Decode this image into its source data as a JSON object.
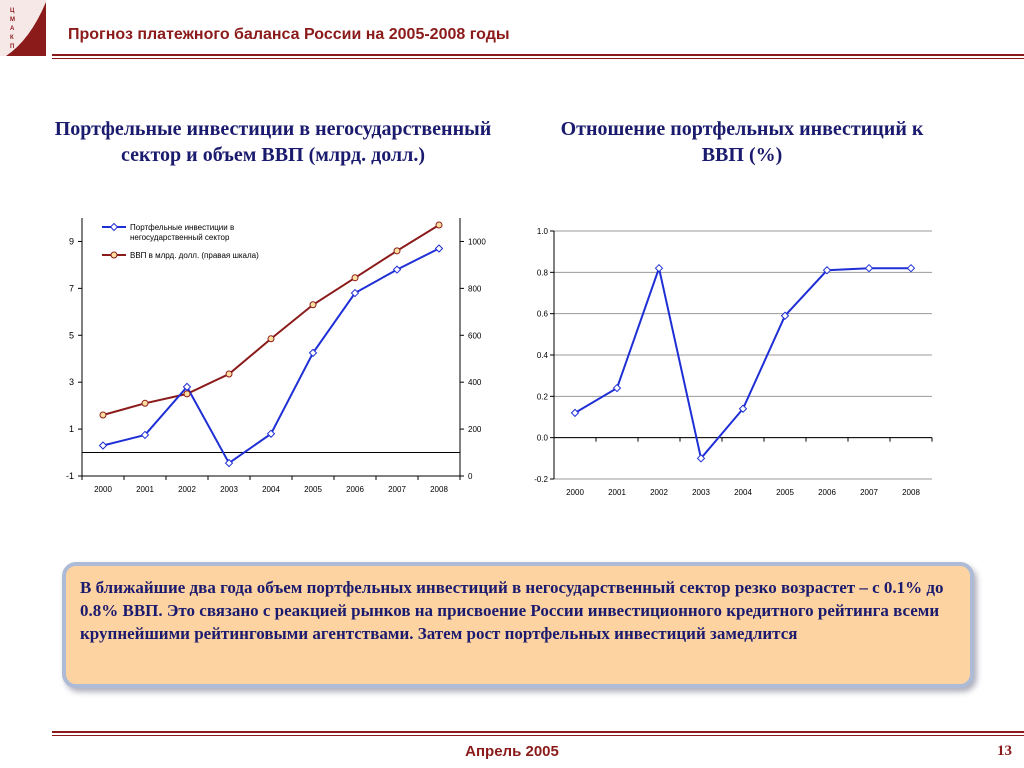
{
  "slide": {
    "title": "Прогноз платежного баланса России на 2005-2008 годы",
    "logo_letters": [
      "Ц",
      "М",
      "А",
      "К",
      "П"
    ]
  },
  "colors": {
    "brand": "#8b1a1a",
    "heading": "#1a1a6e",
    "series_blue": "#1f2fd6",
    "series_red": "#8b1a1a",
    "note_fill": "#fdd3a2",
    "note_border": "#aebbd6"
  },
  "left_heading": "Портфельные инвестиции в негосударственный сектор и объем ВВП (млрд. долл.)",
  "right_heading": "Отношение портфельных инвестиций к ВВП (%)",
  "chart_data": [
    {
      "type": "line",
      "title": "Портфельные инвестиции в негосударственный сектор и объем ВВП (млрд. долл.)",
      "categories": [
        "2000",
        "2001",
        "2002",
        "2003",
        "2004",
        "2005",
        "2006",
        "2007",
        "2008"
      ],
      "y_left": {
        "min": -1,
        "max": 10,
        "ticks": [
          -1,
          1,
          3,
          5,
          7,
          9
        ],
        "baseline": 0
      },
      "y_right": {
        "min": 0,
        "max": 1100,
        "ticks": [
          0,
          200,
          400,
          600,
          800,
          1000
        ]
      },
      "legend_position": "top-left",
      "grid": false,
      "series": [
        {
          "name": "Портфельные инвестиции в негосударственный сектор",
          "axis": "left",
          "color": "#1f2fd6",
          "values": [
            0.3,
            0.75,
            2.8,
            -0.45,
            0.8,
            4.25,
            6.8,
            7.8,
            8.7
          ]
        },
        {
          "name": "ВВП в млрд. долл. (правая шкала)",
          "axis": "right",
          "color": "#8b1a1a",
          "values": [
            260,
            310,
            350,
            435,
            585,
            730,
            845,
            960,
            1070
          ]
        }
      ]
    },
    {
      "type": "line",
      "title": "Отношение портфельных инвестиций к ВВП (%)",
      "categories": [
        "2000",
        "2001",
        "2002",
        "2003",
        "2004",
        "2005",
        "2006",
        "2007",
        "2008"
      ],
      "y": {
        "min": -0.2,
        "max": 1.0,
        "ticks": [
          "-0.2",
          "0.0",
          "0.2",
          "0.4",
          "0.6",
          "0.8",
          "1.0"
        ],
        "baseline": 0
      },
      "grid": true,
      "series": [
        {
          "color": "#1f2fd6",
          "values": [
            0.12,
            0.24,
            0.82,
            -0.1,
            0.14,
            0.59,
            0.81,
            0.82,
            0.82
          ]
        }
      ]
    }
  ],
  "note": "В ближайшие два года объем портфельных инвестиций в негосударственный сектор резко возрастет – с 0.1% до 0.8% ВВП. Это связано с реакцией рынков на присвоение России инвестиционного кредитного рейтинга всеми крупнейшими рейтинговыми агентствами. Затем рост портфельных инвестиций замедлится",
  "footer": {
    "date": "Апрель 2005",
    "page": "13"
  }
}
